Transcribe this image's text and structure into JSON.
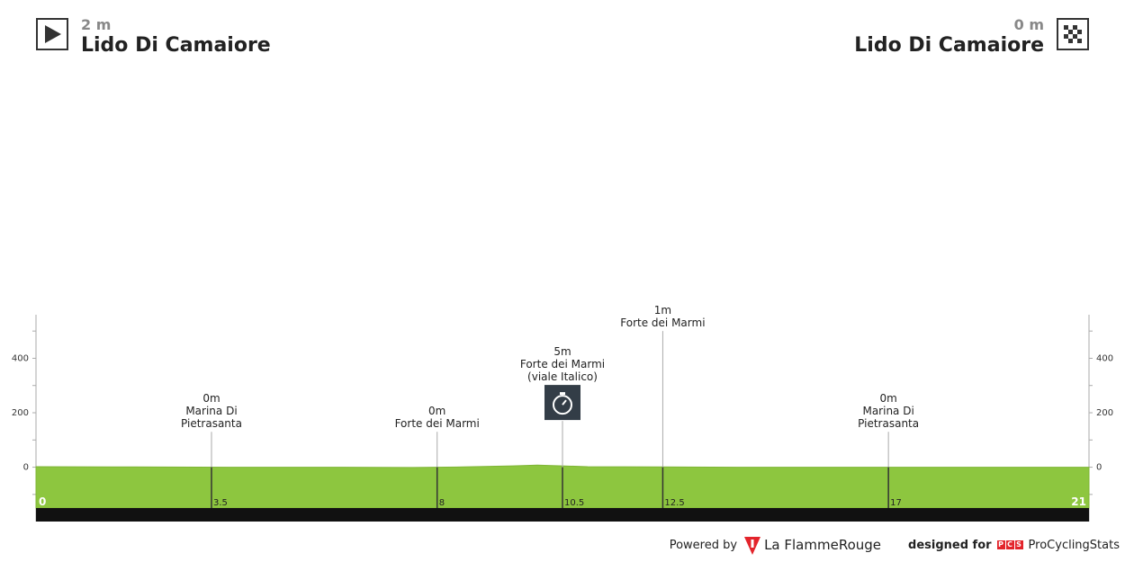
{
  "start": {
    "altitude": "2 m",
    "town": "Lido Di Camaiore",
    "icon": "play-icon"
  },
  "finish": {
    "altitude": "0 m",
    "town": "Lido Di Camaiore",
    "icon": "checkered-flag-icon"
  },
  "footer": {
    "powered_by": "Powered by",
    "brand": "La FlammeRouge",
    "designed_for": "designed for",
    "pcs_letters": [
      "P",
      "C",
      "S"
    ],
    "site": "ProCyclingStats"
  },
  "chart_data": {
    "type": "area",
    "title": "",
    "xlabel": "",
    "ylabel": "",
    "xlim": [
      0,
      21
    ],
    "ylim": [
      -150,
      560
    ],
    "y_ticks": [
      0,
      200,
      400
    ],
    "x_distance_labels": [
      "0",
      "3.5",
      "8",
      "10.5",
      "12.5",
      "17",
      "21"
    ],
    "profile": {
      "x": [
        0,
        2,
        4,
        6,
        7.5,
        8.5,
        9.5,
        10,
        10.5,
        11,
        12.5,
        14,
        16,
        18,
        20,
        21
      ],
      "y": [
        2,
        1,
        0,
        0,
        -1,
        1,
        5,
        8,
        5,
        2,
        1,
        0,
        0,
        0,
        0,
        0
      ]
    },
    "series_color": "#8dc63f",
    "base_color": "#111111",
    "waypoints": [
      {
        "km": 3.5,
        "label_km": "3.5",
        "altitude": "0m",
        "name": [
          "Marina Di",
          "Pietrasanta"
        ],
        "line_top_value": 130
      },
      {
        "km": 8,
        "label_km": "8",
        "altitude": "0m",
        "name": [
          "Forte dei Marmi"
        ],
        "line_top_value": 130
      },
      {
        "km": 10.5,
        "label_km": "10.5",
        "altitude": "5m",
        "name": [
          "Forte dei Marmi",
          "(viale Italico)"
        ],
        "line_top_value": 170,
        "icon": "stopwatch-icon"
      },
      {
        "km": 12.5,
        "label_km": "12.5",
        "altitude": "1m",
        "name": [
          "Forte dei Marmi"
        ],
        "line_top_value": 500
      },
      {
        "km": 17,
        "label_km": "17",
        "altitude": "0m",
        "name": [
          "Marina Di",
          "Pietrasanta"
        ],
        "line_top_value": 130
      }
    ]
  }
}
